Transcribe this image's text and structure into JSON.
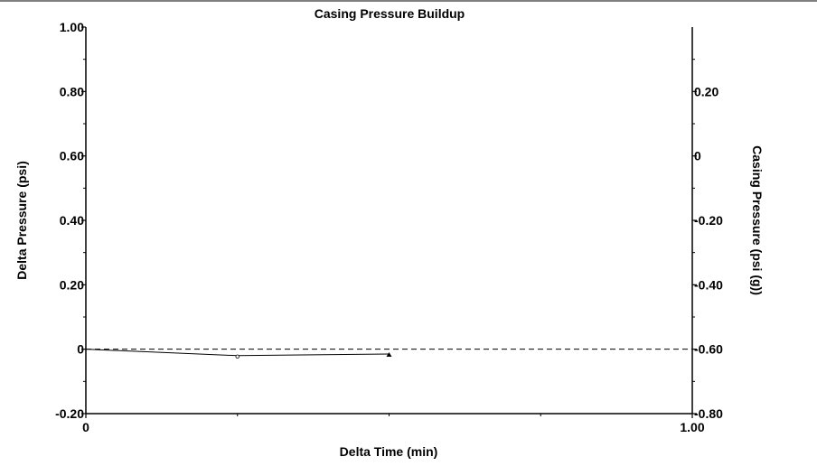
{
  "chart_data": {
    "type": "line",
    "title": "Casing Pressure Buildup",
    "xlabel": "Delta Time (min)",
    "ylabel": "Delta Pressure (psi)",
    "y2label": "Casing Pressure (psi (g))",
    "xlim": [
      0,
      1.0
    ],
    "ylim": [
      -0.2,
      1.0
    ],
    "y2lim": [
      -0.8,
      0.4
    ],
    "x_ticks": [
      "0",
      "1.00"
    ],
    "y_ticks": [
      "-0.20",
      "0",
      "0.20",
      "0.40",
      "0.60",
      "0.80",
      "1.00"
    ],
    "y2_ticks": [
      "-0.80",
      "-0.60",
      "-0.40",
      "-0.20",
      "0",
      "0.20"
    ],
    "reference_line": {
      "y": 0,
      "style": "dashed"
    },
    "series": [
      {
        "x": [
          0.0,
          0.25,
          0.5
        ],
        "y": [
          0.0,
          -0.02,
          -0.015
        ],
        "markers": [
          "none",
          "circle",
          "triangle"
        ]
      }
    ],
    "grid": false,
    "legend": "none",
    "colors": {
      "line": "#000000",
      "background": "#ffffff"
    }
  }
}
